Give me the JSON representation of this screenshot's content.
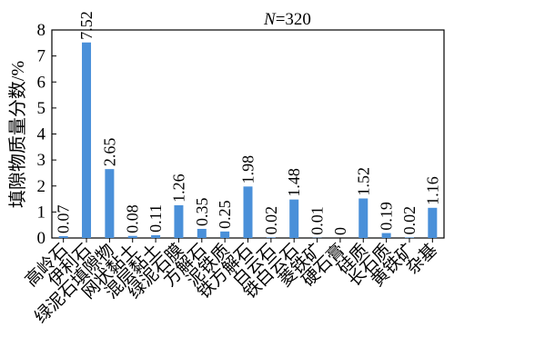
{
  "chart_data": {
    "type": "bar",
    "annotation": {
      "label": "N",
      "value": "=320"
    },
    "ylabel": "填隙物质量分数/%",
    "xlabel": "",
    "ylim": [
      0,
      8
    ],
    "yticks": [
      0,
      1,
      2,
      3,
      4,
      5,
      6,
      7,
      8
    ],
    "grid": false,
    "bar_color": "#4a90d9",
    "categories": [
      "高岭石",
      "伊利石",
      "绿泥石填隙物",
      "网状黏土",
      "混层黏土",
      "绿泥石膜",
      "方解石",
      "泥铁质",
      "铁方解石",
      "白云石",
      "铁白云石",
      "菱铁矿",
      "硬石膏",
      "硅质",
      "长石质",
      "黄铁矿",
      "杂基"
    ],
    "values": [
      0.07,
      7.52,
      2.65,
      0.08,
      0.11,
      1.26,
      0.35,
      0.25,
      1.98,
      0.02,
      1.48,
      0.01,
      0,
      1.52,
      0.19,
      0.02,
      1.16
    ],
    "value_labels": [
      "0.07",
      "7.52",
      "2.65",
      "0.08",
      "0.11",
      "1.26",
      "0.35",
      "0.25",
      "1.98",
      "0.02",
      "1.48",
      "0.01",
      "0",
      "1.52",
      "0.19",
      "0.02",
      "1.16"
    ]
  }
}
